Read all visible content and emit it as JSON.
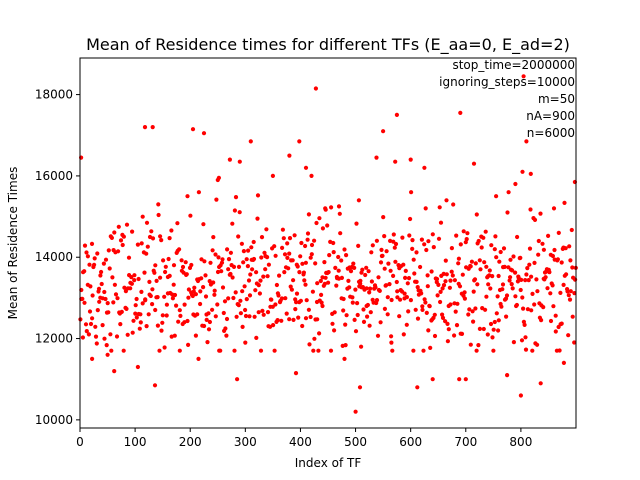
{
  "chart_data": {
    "type": "scatter",
    "title": "Mean of Residence times for different TFs (E_aa=0, E_ad=2)",
    "xlabel": "Index of TF",
    "ylabel": "Mean of Residence Times",
    "xlim": [
      0,
      900
    ],
    "ylim": [
      9800,
      18900
    ],
    "xticks": [
      0,
      100,
      200,
      300,
      400,
      500,
      600,
      700,
      800
    ],
    "yticks": [
      10000,
      12000,
      14000,
      16000,
      18000
    ],
    "grid": false,
    "marker_color": "#ff0000",
    "annotations": [
      "stop_time=2000000",
      "ignoring_steps=10000",
      "m=50",
      "nA=900",
      "n=6000"
    ],
    "n_points": 900,
    "series": [
      {
        "x": [
          2,
          22,
          50,
          62,
          105,
          118,
          132,
          136,
          142,
          205,
          215,
          225,
          252,
          272,
          285,
          310,
          322,
          350,
          380,
          392,
          398,
          410,
          420,
          428,
          445,
          470,
          480,
          500,
          508,
          520,
          538,
          550,
          565,
          575,
          600,
          612,
          625,
          640,
          665,
          690,
          700,
          715,
          740,
          755,
          775,
          790,
          805,
          810,
          818,
          836,
          860,
          878,
          898,
          430,
          572,
          688,
          800,
          803,
          510,
          506,
          290,
          300,
          195,
          410,
          440,
          250,
          632,
          720,
          760,
          655
        ],
        "y": [
          16450,
          11500,
          11600,
          11200,
          11300,
          17200,
          17200,
          10850,
          15300,
          17150,
          11500,
          17050,
          15950,
          16400,
          11000,
          16850,
          14950,
          16000,
          16500,
          11150,
          16850,
          16200,
          16000,
          18150,
          15200,
          15250,
          11500,
          10200,
          10800,
          12800,
          16450,
          17100,
          11900,
          17500,
          16400,
          10800,
          16200,
          11000,
          15400,
          17550,
          11000,
          16300,
          12100,
          15500,
          11100,
          15800,
          18450,
          16850,
          16050,
          10900,
          15200,
          11400,
          15850,
          12900,
          16350,
          11000,
          10600,
          16100,
          11800,
          15400,
          16350,
          11900,
          15500,
          12500,
          12800,
          15900,
          12200,
          15050,
          12450,
          14850
        ]
      }
    ]
  }
}
